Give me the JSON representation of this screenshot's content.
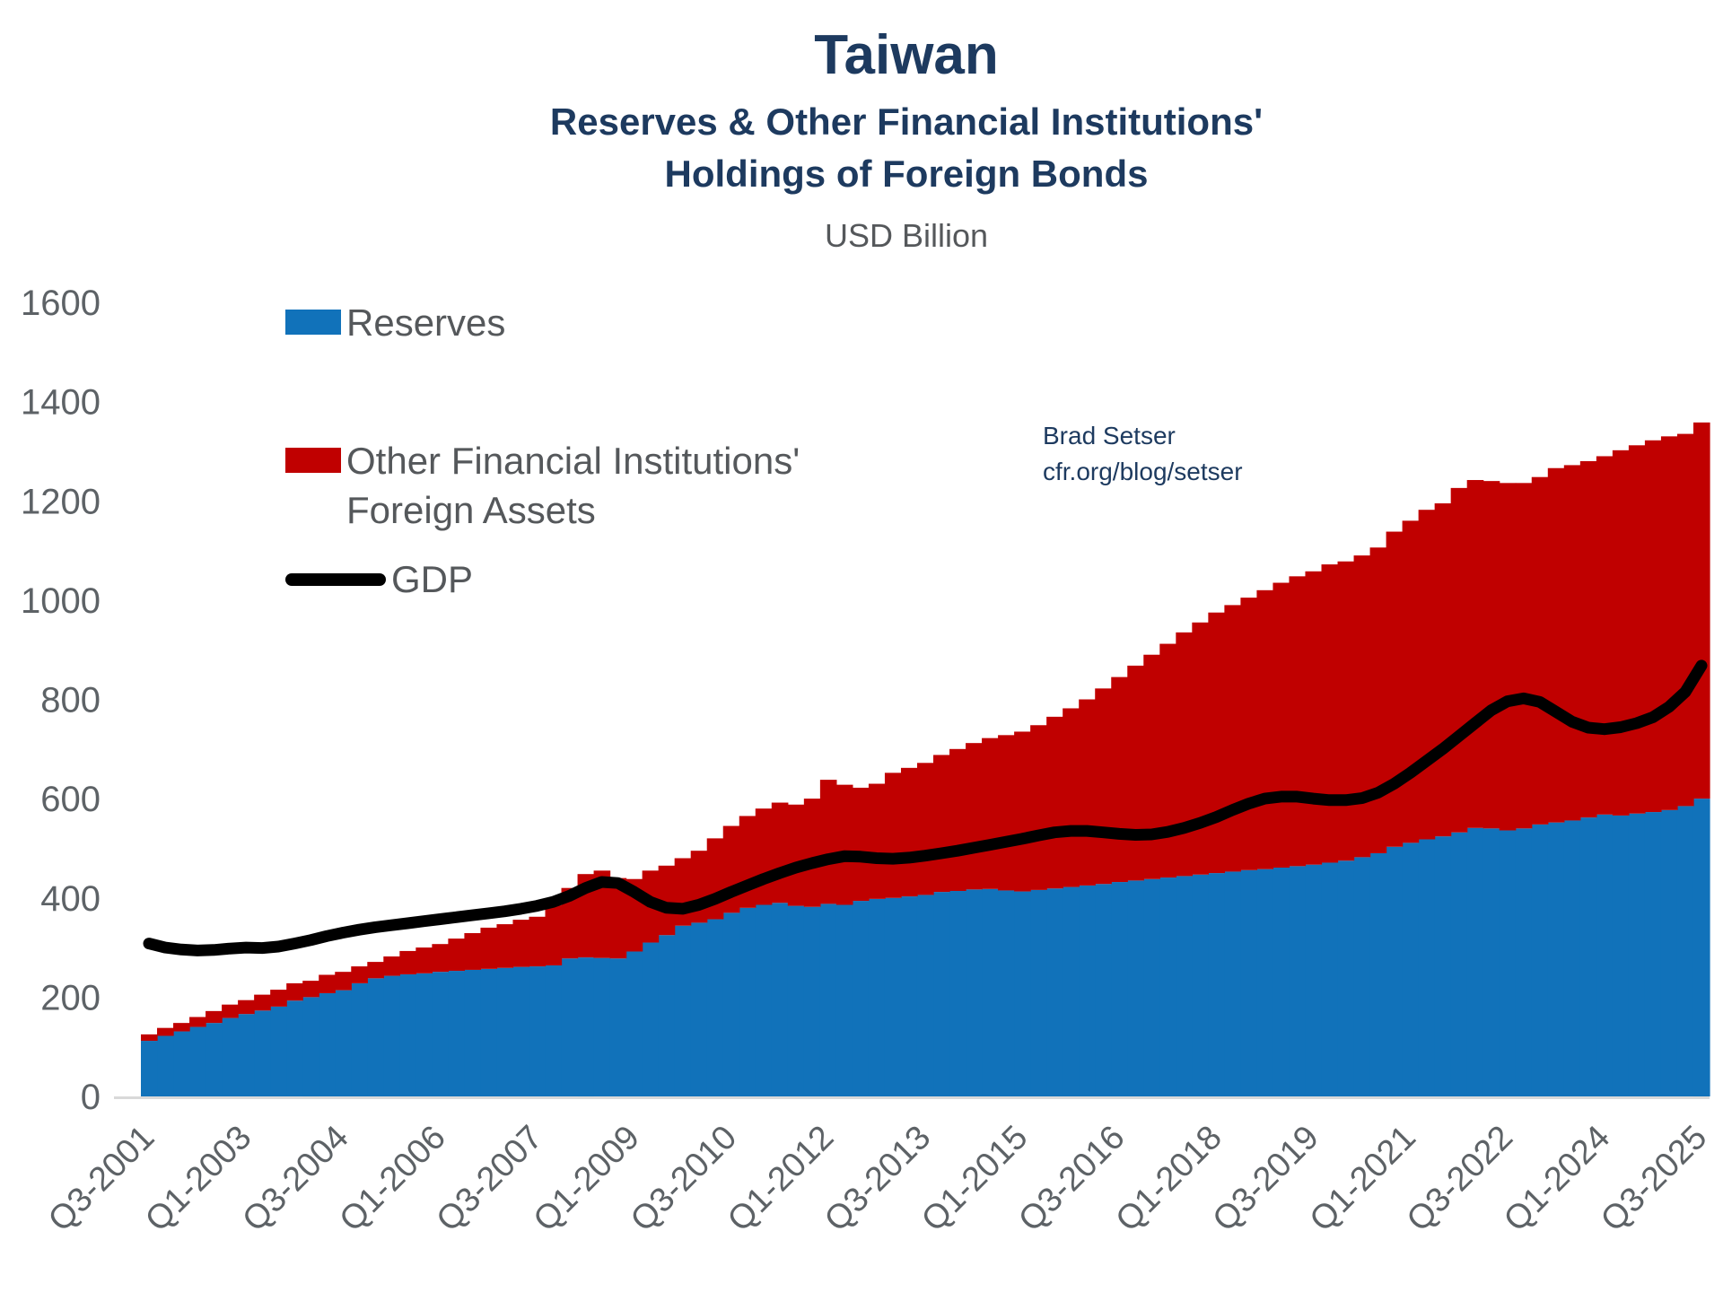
{
  "chart_data": {
    "type": "stacked-bar+line",
    "title": "Taiwan",
    "subtitle": [
      "Reserves & Other Financial Institutions'",
      "Holdings of Foreign Bonds"
    ],
    "units_label": "USD Billion",
    "annotation": [
      "Brad Setser",
      "cfr.org/blog/setser"
    ],
    "legend": {
      "reserves": "Reserves",
      "ofi_line1": "Other Financial Institutions'",
      "ofi_line2": "Foreign Assets",
      "gdp": "GDP"
    },
    "legend_position": "upper-left",
    "grid": false,
    "ylim": [
      0,
      1600
    ],
    "yticks": [
      0,
      200,
      400,
      600,
      800,
      1000,
      1200,
      1400,
      1600
    ],
    "x_tick_step": 6,
    "x_tick_labels": [
      "Q3-2001",
      "Q1-2003",
      "Q3-2004",
      "Q1-2006",
      "Q3-2007",
      "Q1-2009",
      "Q3-2010",
      "Q1-2012",
      "Q3-2013",
      "Q1-2015",
      "Q3-2016",
      "Q1-2018",
      "Q3-2019",
      "Q1-2021",
      "Q3-2022",
      "Q1-2024",
      "Q3-2025"
    ],
    "x": [
      "Q3-2001",
      "Q4-2001",
      "Q1-2002",
      "Q2-2002",
      "Q3-2002",
      "Q4-2002",
      "Q1-2003",
      "Q2-2003",
      "Q3-2003",
      "Q4-2003",
      "Q1-2004",
      "Q2-2004",
      "Q3-2004",
      "Q4-2004",
      "Q1-2005",
      "Q2-2005",
      "Q3-2005",
      "Q4-2005",
      "Q1-2006",
      "Q2-2006",
      "Q3-2006",
      "Q4-2006",
      "Q1-2007",
      "Q2-2007",
      "Q3-2007",
      "Q4-2007",
      "Q1-2008",
      "Q2-2008",
      "Q3-2008",
      "Q4-2008",
      "Q1-2009",
      "Q2-2009",
      "Q3-2009",
      "Q4-2009",
      "Q1-2010",
      "Q2-2010",
      "Q3-2010",
      "Q4-2010",
      "Q1-2011",
      "Q2-2011",
      "Q3-2011",
      "Q4-2011",
      "Q1-2012",
      "Q2-2012",
      "Q3-2012",
      "Q4-2012",
      "Q1-2013",
      "Q2-2013",
      "Q3-2013",
      "Q4-2013",
      "Q1-2014",
      "Q2-2014",
      "Q3-2014",
      "Q4-2014",
      "Q1-2015",
      "Q2-2015",
      "Q3-2015",
      "Q4-2015",
      "Q1-2016",
      "Q2-2016",
      "Q3-2016",
      "Q4-2016",
      "Q1-2017",
      "Q2-2017",
      "Q3-2017",
      "Q4-2017",
      "Q1-2018",
      "Q2-2018",
      "Q3-2018",
      "Q4-2018",
      "Q1-2019",
      "Q2-2019",
      "Q3-2019",
      "Q4-2019",
      "Q1-2020",
      "Q2-2020",
      "Q3-2020",
      "Q4-2020",
      "Q1-2021",
      "Q2-2021",
      "Q3-2021",
      "Q4-2021",
      "Q1-2022",
      "Q2-2022",
      "Q3-2022",
      "Q4-2022",
      "Q1-2023",
      "Q2-2023",
      "Q3-2023",
      "Q4-2023",
      "Q1-2024",
      "Q2-2024",
      "Q3-2024",
      "Q4-2024",
      "Q1-2025",
      "Q2-2025",
      "Q3-2025"
    ],
    "series": [
      {
        "name": "Reserves",
        "type": "bar",
        "color": "#1172BA",
        "values": [
          112,
          122,
          131,
          140,
          148,
          158,
          166,
          173,
          181,
          193,
          200,
          208,
          214,
          228,
          238,
          243,
          246,
          248,
          251,
          253,
          255,
          257,
          259,
          261,
          262,
          264,
          278,
          280,
          279,
          278,
          292,
          310,
          325,
          344,
          350,
          357,
          370,
          380,
          386,
          390,
          384,
          382,
          388,
          386,
          394,
          398,
          400,
          403,
          406,
          412,
          414,
          417,
          418,
          415,
          413,
          416,
          419,
          422,
          425,
          428,
          432,
          435,
          438,
          441,
          444,
          447,
          450,
          453,
          456,
          458,
          461,
          464,
          467,
          471,
          475,
          482,
          490,
          503,
          511,
          518,
          524,
          532,
          541,
          540,
          536,
          540,
          548,
          552,
          556,
          562,
          568,
          566,
          570,
          573,
          577,
          585,
          600
        ]
      },
      {
        "name": "Other Financial Institutions' Foreign Assets",
        "type": "bar",
        "color": "#C00000",
        "values": [
          13,
          16,
          17,
          20,
          24,
          27,
          28,
          32,
          34,
          35,
          33,
          37,
          37,
          34,
          33,
          39,
          47,
          52,
          56,
          65,
          74,
          83,
          88,
          95,
          100,
          121,
          142,
          168,
          176,
          162,
          146,
          145,
          140,
          136,
          145,
          163,
          175,
          185,
          194,
          202,
          204,
          218,
          250,
          242,
          228,
          232,
          252,
          259,
          266,
          276,
          286,
          295,
          304,
          313,
          322,
          332,
          346,
          360,
          375,
          394,
          413,
          433,
          452,
          471,
          491,
          508,
          525,
          537,
          549,
          562,
          574,
          584,
          591,
          601,
          603,
          608,
          616,
          635,
          649,
          664,
          671,
          694,
          701,
          700,
          700,
          696,
          700,
          714,
          716,
          718,
          722,
          736,
          742,
          749,
          753,
          750,
          758
        ]
      },
      {
        "name": "GDP",
        "type": "line",
        "color": "#000000",
        "values": [
          308,
          300,
          296,
          294,
          295,
          298,
          300,
          299,
          302,
          308,
          315,
          323,
          330,
          336,
          341,
          345,
          349,
          353,
          357,
          361,
          365,
          369,
          373,
          378,
          384,
          392,
          404,
          420,
          432,
          430,
          412,
          392,
          380,
          378,
          386,
          398,
          412,
          425,
          438,
          450,
          461,
          470,
          478,
          484,
          483,
          480,
          479,
          481,
          485,
          490,
          495,
          501,
          507,
          513,
          519,
          526,
          532,
          535,
          535,
          532,
          529,
          527,
          528,
          533,
          541,
          551,
          563,
          577,
          590,
          600,
          604,
          604,
          600,
          597,
          597,
          601,
          612,
          630,
          652,
          676,
          700,
          726,
          752,
          778,
          796,
          802,
          795,
          775,
          755,
          743,
          740,
          744,
          752,
          764,
          785,
          815,
          868
        ]
      }
    ]
  }
}
